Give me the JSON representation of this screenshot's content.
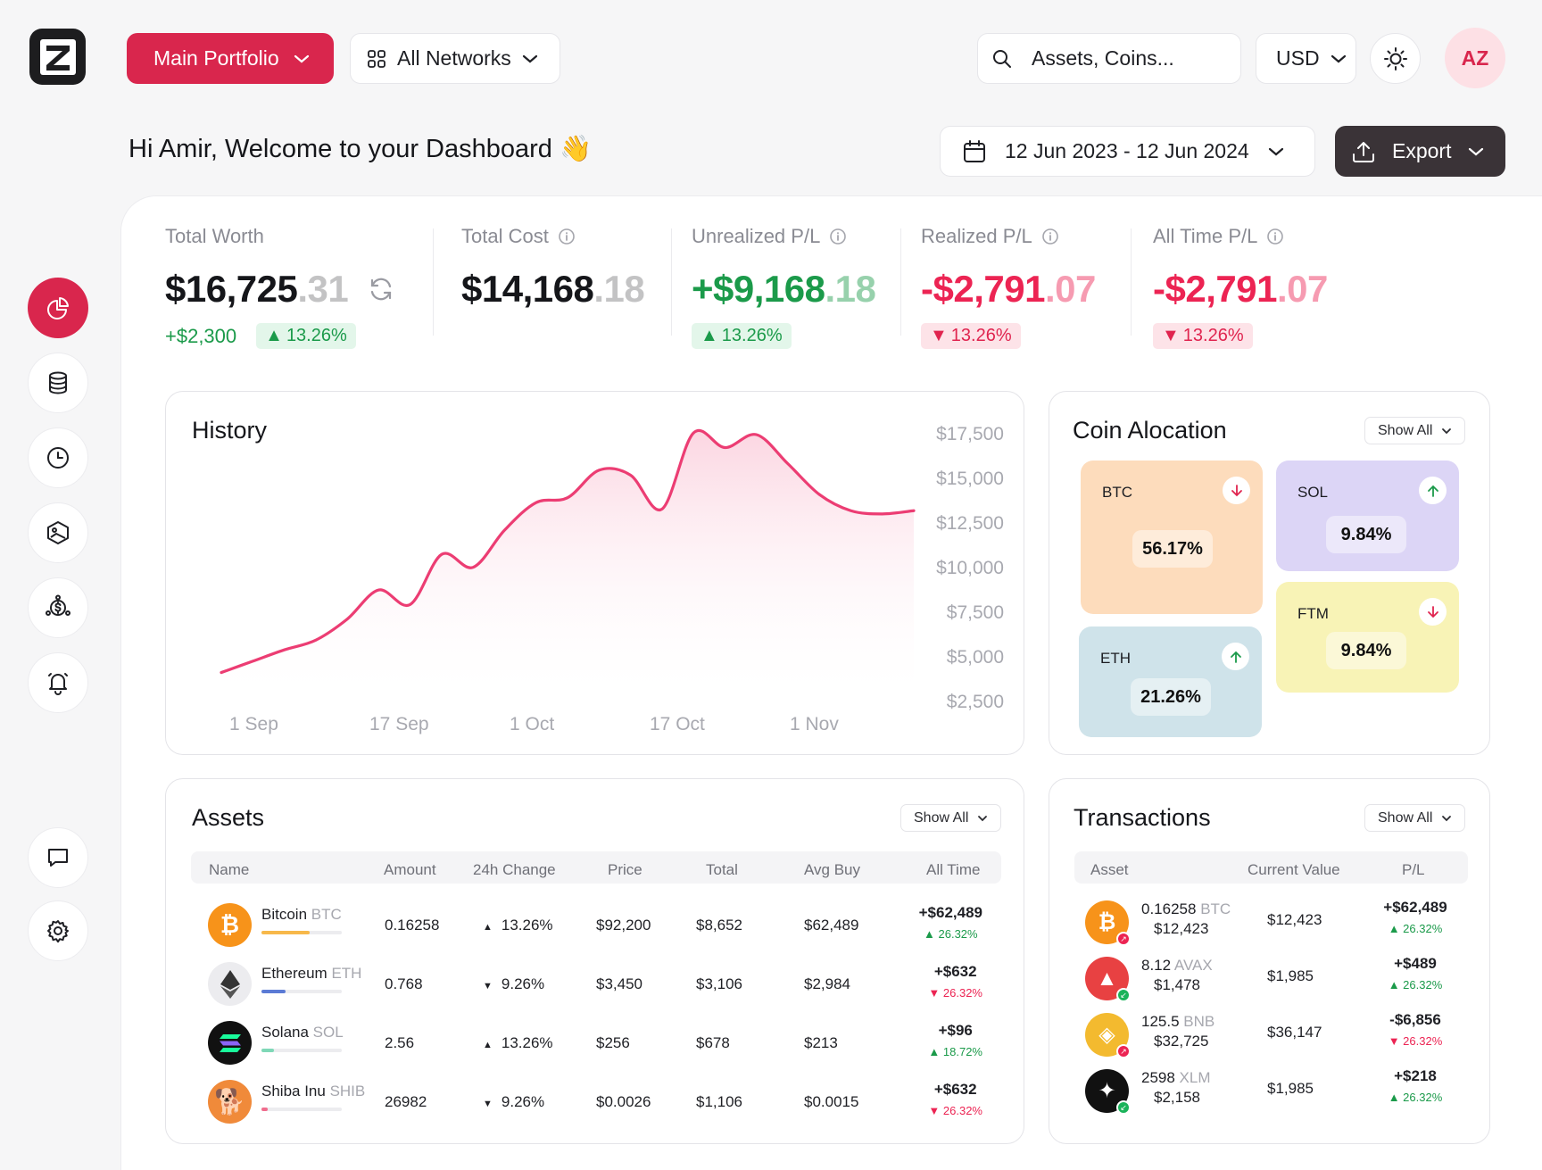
{
  "brand": {
    "logo_icon": "z-logo-icon"
  },
  "header": {
    "portfolio_label": "Main Portfolio",
    "networks_label": "All Networks",
    "search_placeholder": "Assets, Coins...",
    "currency_label": "USD",
    "avatar_initials": "AZ"
  },
  "welcome": {
    "text": "Hi Amir, Welcome to your Dashboard",
    "emoji": "👋"
  },
  "date_range": "12 Jun 2023 - 12 Jun 2024",
  "export_label": "Export",
  "stats": {
    "total_worth": {
      "label": "Total Worth",
      "int": "$16,725",
      "dec": ".31",
      "delta": "+$2,300",
      "pct": "13.26%"
    },
    "total_cost": {
      "label": "Total Cost",
      "int": "$14,168",
      "dec": ".18"
    },
    "unrealized": {
      "label": "Unrealized P/L",
      "int": "+$9,168",
      "dec": ".18",
      "pct": "13.26%"
    },
    "realized": {
      "label": "Realized P/L",
      "int": "-$2,791",
      "dec": ".07",
      "pct": "13.26%"
    },
    "all_time": {
      "label": "All Time P/L",
      "int": "-$2,791",
      "dec": ".07",
      "pct": "13.26%"
    }
  },
  "history": {
    "title": "History",
    "y_ticks": [
      "$17,500",
      "$15,000",
      "$12,500",
      "$10,000",
      "$7,500",
      "$5,000",
      "$2,500"
    ],
    "x_ticks": [
      "1 Sep",
      "17 Sep",
      "1 Oct",
      "17 Oct",
      "1 Nov"
    ]
  },
  "chart_data": {
    "type": "area",
    "title": "History",
    "x": [
      "1 Sep",
      "4 Sep",
      "8 Sep",
      "12 Sep",
      "14 Sep",
      "17 Sep",
      "20 Sep",
      "23 Sep",
      "26 Sep",
      "29 Sep",
      "1 Oct",
      "4 Oct",
      "7 Oct",
      "10 Oct",
      "14 Oct",
      "17 Oct",
      "20 Oct",
      "23 Oct",
      "26 Oct",
      "29 Oct",
      "1 Nov",
      "4 Nov",
      "7 Nov"
    ],
    "series": [
      {
        "values": [
          2800,
          3500,
          4200,
          4800,
          6100,
          7900,
          7000,
          10100,
          9300,
          11600,
          13300,
          13600,
          15300,
          15000,
          12900,
          17600,
          16700,
          17500,
          15700,
          13800,
          12800,
          12600,
          12800
        ]
      }
    ],
    "ylim": [
      2500,
      17500
    ],
    "color": "#ec3d73"
  },
  "allocation": {
    "title": "Coin Alocation",
    "show_all": "Show All",
    "tiles": [
      {
        "label": "BTC",
        "pct": "56.17%",
        "dir": "down",
        "color": "#fddcbc"
      },
      {
        "label": "SOL",
        "pct": "9.84%",
        "dir": "up",
        "color": "#dcd5f6"
      },
      {
        "label": "ETH",
        "pct": "21.26%",
        "dir": "up",
        "color": "#cfe3ea"
      },
      {
        "label": "FTM",
        "pct": "9.84%",
        "dir": "down",
        "color": "#f8f3b6"
      }
    ]
  },
  "assets": {
    "title": "Assets",
    "show_all": "Show All",
    "columns": [
      "Name",
      "Amount",
      "24h Change",
      "Price",
      "Total",
      "Avg Buy",
      "All Time"
    ],
    "rows": [
      {
        "name": "Bitcoin",
        "sym": "BTC",
        "amount": "0.16258",
        "change": "13.26%",
        "change_dir": "up",
        "price": "$92,200",
        "total": "$8,652",
        "avg": "$62,489",
        "all_time": "+$62,489",
        "all_time_pct": "26.32%",
        "at_dir": "up",
        "bar": 0.6,
        "bar_color": "#f7b84a",
        "icon_color": "#f7931a",
        "icon_glyph": "₿"
      },
      {
        "name": "Ethereum",
        "sym": "ETH",
        "amount": "0.768",
        "change": "9.26%",
        "change_dir": "down",
        "price": "$3,450",
        "total": "$3,106",
        "avg": "$2,984",
        "all_time": "+$632",
        "all_time_pct": "26.32%",
        "at_dir": "down",
        "bar": 0.3,
        "bar_color": "#5b7bd5",
        "icon_color": "#ececef",
        "icon_glyph": "◆"
      },
      {
        "name": "Solana",
        "sym": "SOL",
        "amount": "2.56",
        "change": "13.26%",
        "change_dir": "up",
        "price": "$256",
        "total": "$678",
        "avg": "$213",
        "all_time": "+$96",
        "all_time_pct": "18.72%",
        "at_dir": "up",
        "bar": 0.15,
        "bar_color": "#7fd8b7",
        "icon_color": "#111",
        "icon_glyph": "≡"
      },
      {
        "name": "Shiba Inu",
        "sym": "SHIB",
        "amount": "26982",
        "change": "9.26%",
        "change_dir": "down",
        "price": "$0.0026",
        "total": "$1,106",
        "avg": "$0.0015",
        "all_time": "+$632",
        "all_time_pct": "26.32%",
        "at_dir": "down",
        "bar": 0.08,
        "bar_color": "#f06d8e",
        "icon_color": "#f08a3a",
        "icon_glyph": "🐕"
      }
    ]
  },
  "transactions": {
    "title": "Transactions",
    "show_all": "Show All",
    "columns": [
      "Asset",
      "Current Value",
      "P/L"
    ],
    "rows": [
      {
        "amount": "0.16258",
        "sym": "BTC",
        "value": "$12,423",
        "current": "$12,423",
        "pl": "+$62,489",
        "pl_pct": "26.32%",
        "dir": "up",
        "kind": "sell",
        "icon_color": "#f7931a",
        "icon_glyph": "₿"
      },
      {
        "amount": "8.12",
        "sym": "AVAX",
        "value": "$1,478",
        "current": "$1,985",
        "pl": "+$489",
        "pl_pct": "26.32%",
        "dir": "up",
        "kind": "buy",
        "icon_color": "#e84142",
        "icon_glyph": "▲"
      },
      {
        "amount": "125.5",
        "sym": "BNB",
        "value": "$32,725",
        "current": "$36,147",
        "pl": "-$6,856",
        "pl_pct": "26.32%",
        "dir": "down",
        "kind": "sell",
        "icon_color": "#f3ba2f",
        "icon_glyph": "◈"
      },
      {
        "amount": "2598",
        "sym": "XLM",
        "value": "$2,158",
        "current": "$1,985",
        "pl": "+$218",
        "pl_pct": "26.32%",
        "dir": "up",
        "kind": "buy",
        "icon_color": "#111",
        "icon_glyph": "✦"
      }
    ]
  },
  "sidebar": {
    "items": [
      {
        "icon": "pie-chart-icon",
        "active": true
      },
      {
        "icon": "database-icon"
      },
      {
        "icon": "clock-icon"
      },
      {
        "icon": "cube-icon"
      },
      {
        "icon": "dollar-network-icon"
      },
      {
        "icon": "bell-icon"
      },
      {
        "icon": "chat-icon"
      },
      {
        "icon": "gear-icon"
      }
    ]
  }
}
